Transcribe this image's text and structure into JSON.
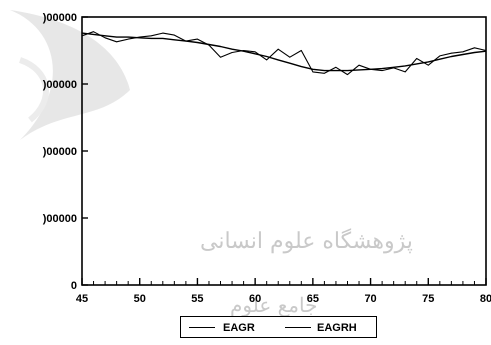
{
  "chart_data": {
    "type": "line",
    "title": "",
    "xlabel": "",
    "ylabel": "",
    "xlim": [
      45,
      80
    ],
    "ylim": [
      0,
      4
    ],
    "x_ticks": [
      "45",
      "50",
      "55",
      "60",
      "65",
      "70",
      "75",
      "80"
    ],
    "y_ticks": [
      "0",
      ")00000",
      ")00000",
      ")00000",
      ")00000"
    ],
    "grid": false,
    "legend_position": "bottom",
    "series": [
      {
        "name": "EAGR",
        "x": [
          45,
          46,
          47,
          48,
          49,
          50,
          51,
          52,
          53,
          54,
          55,
          56,
          57,
          58,
          59,
          60,
          61,
          62,
          63,
          64,
          65,
          66,
          67,
          68,
          69,
          70,
          71,
          72,
          73,
          74,
          75,
          76,
          77,
          78,
          79,
          80
        ],
        "values": [
          3.72,
          3.78,
          3.69,
          3.63,
          3.67,
          3.7,
          3.72,
          3.76,
          3.73,
          3.64,
          3.67,
          3.58,
          3.4,
          3.47,
          3.5,
          3.48,
          3.36,
          3.52,
          3.4,
          3.5,
          3.18,
          3.16,
          3.25,
          3.14,
          3.28,
          3.22,
          3.2,
          3.24,
          3.18,
          3.38,
          3.28,
          3.42,
          3.46,
          3.48,
          3.54,
          3.5
        ]
      },
      {
        "name": "EAGRH",
        "x": [
          45,
          46,
          47,
          48,
          49,
          50,
          51,
          52,
          53,
          54,
          55,
          56,
          57,
          58,
          59,
          60,
          61,
          62,
          63,
          64,
          65,
          66,
          67,
          68,
          69,
          70,
          71,
          72,
          73,
          74,
          75,
          76,
          77,
          78,
          79,
          80
        ],
        "values": [
          3.76,
          3.74,
          3.72,
          3.7,
          3.7,
          3.69,
          3.68,
          3.68,
          3.66,
          3.64,
          3.62,
          3.59,
          3.56,
          3.52,
          3.49,
          3.45,
          3.41,
          3.36,
          3.31,
          3.26,
          3.22,
          3.2,
          3.2,
          3.2,
          3.21,
          3.22,
          3.23,
          3.25,
          3.27,
          3.3,
          3.33,
          3.37,
          3.41,
          3.44,
          3.47,
          3.49
        ]
      }
    ],
    "colors": {
      "line": "#000000",
      "axis": "#000000",
      "background": "#ffffff"
    }
  },
  "legend": {
    "items": [
      {
        "label": "EAGR"
      },
      {
        "label": "EAGRH"
      }
    ]
  },
  "watermark": {
    "line1": "پژوهشگاه علوم انسانی",
    "line2": "جامع علوم"
  }
}
